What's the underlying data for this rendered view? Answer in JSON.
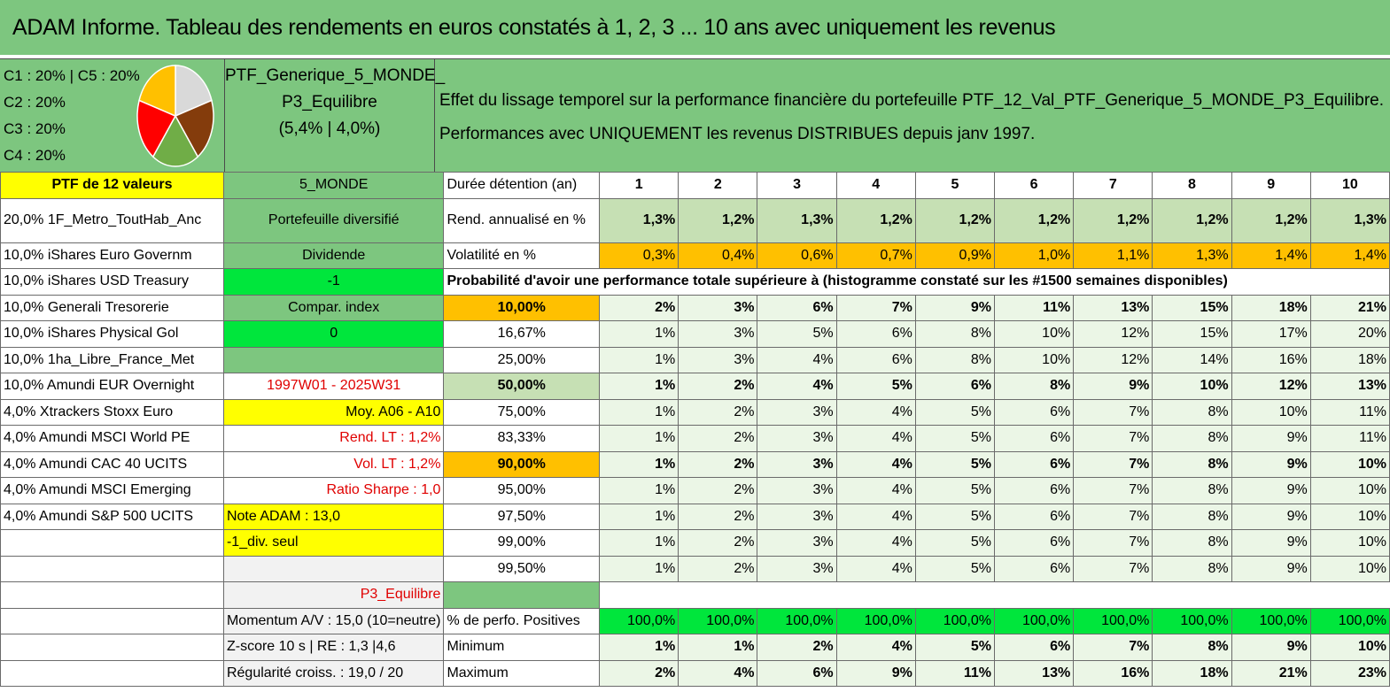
{
  "title": "ADAM Informe. Tableau des rendements en euros constatés à 1, 2, 3 ... 10 ans avec uniquement les revenus",
  "legend": [
    "C1 : 20% | C5 : 20%",
    "C2 : 20%",
    "C3 : 20%",
    "C4 : 20%"
  ],
  "pie_colors": [
    "#d9d9d9",
    "#843c0c",
    "#70ad47",
    "#ff0000",
    "#ffc000"
  ],
  "ptf": {
    "line1": "PTF_Generique_5_MONDE_",
    "line2": "P3_Equilibre",
    "line3": "(5,4% | 4,0%)"
  },
  "description": {
    "line1": "Effet du lissage temporel sur la performance financière du portefeuille PTF_12_Val_PTF_Generique_5_MONDE_P3_Equilibre.",
    "line2": "Performances avec UNIQUEMENT les revenus DISTRIBUES depuis janv 1997."
  },
  "holdings": [
    "PTF de 12 valeurs",
    "20,0% 1F_Metro_ToutHab_Anc",
    "10,0% iShares Euro Governm",
    "10,0% iShares USD Treasury",
    "10,0% Generali Tresorerie",
    "10,0% iShares Physical Gol",
    "10,0% 1ha_Libre_France_Met",
    "10,0% Amundi EUR Overnight",
    "4,0% Xtrackers Stoxx Euro",
    "4,0% Amundi MSCI World PE",
    "4,0% Amundi CAC 40 UCITS",
    "4,0% Amundi MSCI Emerging",
    "4,0% Amundi S&P 500 UCITS"
  ],
  "info": [
    "5_MONDE",
    "Portefeuille diversifié",
    "Dividende",
    "-1",
    "Compar. index",
    "0",
    "",
    "1997W01 - 2025W31",
    "Moy. A06 - A10",
    "Rend. LT : 1,2%",
    "Vol. LT : 1,2%",
    "Ratio Sharpe : 1,0",
    "Note ADAM : 13,0",
    "-1_div. seul",
    "",
    "P3_Equilibre",
    "Momentum A/V : 15,0 (10=neutre)",
    "Z-score 10 s | RE : 1,3 |4,6",
    "Régularité croiss. : 19,0 / 20"
  ],
  "years_label": "Durée détention (an)",
  "years": [
    "1",
    "2",
    "3",
    "4",
    "5",
    "6",
    "7",
    "8",
    "9",
    "10"
  ],
  "rend_label": "Rend. annualisé en %",
  "rend": [
    "1,3%",
    "1,2%",
    "1,3%",
    "1,2%",
    "1,2%",
    "1,2%",
    "1,2%",
    "1,2%",
    "1,2%",
    "1,3%"
  ],
  "vol_label": "Volatilité en %",
  "vol": [
    "0,3%",
    "0,4%",
    "0,6%",
    "0,7%",
    "0,9%",
    "1,0%",
    "1,1%",
    "1,3%",
    "1,4%",
    "1,4%"
  ],
  "proba_label": "Probabilité d'avoir une performance totale supérieure à (histogramme constaté sur les #1500 semaines disponibles)",
  "proba": [
    {
      "level": "10,00%",
      "values": [
        "2%",
        "3%",
        "6%",
        "7%",
        "9%",
        "11%",
        "13%",
        "15%",
        "18%",
        "21%"
      ]
    },
    {
      "level": "16,67%",
      "values": [
        "1%",
        "3%",
        "5%",
        "6%",
        "8%",
        "10%",
        "12%",
        "15%",
        "17%",
        "20%"
      ]
    },
    {
      "level": "25,00%",
      "values": [
        "1%",
        "3%",
        "4%",
        "6%",
        "8%",
        "10%",
        "12%",
        "14%",
        "16%",
        "18%"
      ]
    },
    {
      "level": "50,00%",
      "values": [
        "1%",
        "2%",
        "4%",
        "5%",
        "6%",
        "8%",
        "9%",
        "10%",
        "12%",
        "13%"
      ]
    },
    {
      "level": "75,00%",
      "values": [
        "1%",
        "2%",
        "3%",
        "4%",
        "5%",
        "6%",
        "7%",
        "8%",
        "10%",
        "11%"
      ]
    },
    {
      "level": "83,33%",
      "values": [
        "1%",
        "2%",
        "3%",
        "4%",
        "5%",
        "6%",
        "7%",
        "8%",
        "9%",
        "11%"
      ]
    },
    {
      "level": "90,00%",
      "values": [
        "1%",
        "2%",
        "3%",
        "4%",
        "5%",
        "6%",
        "7%",
        "8%",
        "9%",
        "10%"
      ]
    },
    {
      "level": "95,00%",
      "values": [
        "1%",
        "2%",
        "3%",
        "4%",
        "5%",
        "6%",
        "7%",
        "8%",
        "9%",
        "10%"
      ]
    },
    {
      "level": "97,50%",
      "values": [
        "1%",
        "2%",
        "3%",
        "4%",
        "5%",
        "6%",
        "7%",
        "8%",
        "9%",
        "10%"
      ]
    },
    {
      "level": "99,00%",
      "values": [
        "1%",
        "2%",
        "3%",
        "4%",
        "5%",
        "6%",
        "7%",
        "8%",
        "9%",
        "10%"
      ]
    },
    {
      "level": "99,50%",
      "values": [
        "1%",
        "2%",
        "3%",
        "4%",
        "5%",
        "6%",
        "7%",
        "8%",
        "9%",
        "10%"
      ]
    }
  ],
  "pos_label": "% de perfo. Positives",
  "pos": [
    "100,0%",
    "100,0%",
    "100,0%",
    "100,0%",
    "100,0%",
    "100,0%",
    "100,0%",
    "100,0%",
    "100,0%",
    "100,0%"
  ],
  "min_label": "Minimum",
  "min": [
    "1%",
    "1%",
    "2%",
    "4%",
    "5%",
    "6%",
    "7%",
    "8%",
    "9%",
    "10%"
  ],
  "max_label": "Maximum",
  "max": [
    "2%",
    "4%",
    "6%",
    "9%",
    "11%",
    "13%",
    "16%",
    "18%",
    "21%",
    "23%"
  ]
}
